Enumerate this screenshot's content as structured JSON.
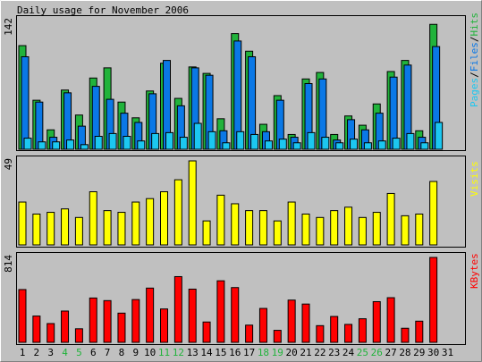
{
  "title": "Daily usage for November 2006",
  "days": [
    "1",
    "2",
    "3",
    "4",
    "5",
    "6",
    "7",
    "8",
    "9",
    "10",
    "11",
    "12",
    "13",
    "14",
    "15",
    "16",
    "17",
    "18",
    "19",
    "20",
    "21",
    "22",
    "23",
    "24",
    "25",
    "26",
    "27",
    "28",
    "29",
    "30",
    "31"
  ],
  "weekend_days": [
    "4",
    "5",
    "11",
    "12",
    "18",
    "19",
    "25",
    "26"
  ],
  "colors": {
    "background": "#c0c0c0",
    "hits": "#21b33b",
    "files": "#0a78e6",
    "pages": "#1cc7f0",
    "visits": "#ffff00",
    "kbytes": "#ff0000",
    "weekend_label": "#21b33b",
    "weekday_label": "#000000"
  },
  "chart_data": [
    {
      "type": "bar",
      "panel": "hits-files-pages",
      "y_max_label": "142",
      "ylim": [
        0,
        142
      ],
      "legend": {
        "pages": "Pages",
        "files": "Files",
        "hits": "Hits",
        "sep": "/"
      },
      "series": [
        {
          "name": "Hits",
          "values": [
            112,
            53,
            21,
            64,
            37,
            77,
            88,
            51,
            34,
            63,
            93,
            55,
            89,
            82,
            33,
            125,
            106,
            27,
            58,
            16,
            76,
            83,
            16,
            36,
            26,
            49,
            84,
            96,
            20,
            135,
            null
          ]
        },
        {
          "name": "Files",
          "values": [
            100,
            51,
            13,
            61,
            25,
            68,
            54,
            39,
            29,
            60,
            96,
            47,
            88,
            80,
            20,
            117,
            100,
            19,
            53,
            13,
            71,
            76,
            10,
            32,
            21,
            39,
            78,
            91,
            13,
            111,
            null
          ]
        },
        {
          "name": "Pages",
          "values": [
            12,
            8,
            8,
            10,
            5,
            14,
            17,
            14,
            9,
            17,
            18,
            13,
            28,
            19,
            7,
            19,
            16,
            9,
            11,
            7,
            18,
            13,
            7,
            11,
            7,
            9,
            12,
            17,
            7,
            29,
            null
          ]
        }
      ]
    },
    {
      "type": "bar",
      "panel": "visits",
      "y_max_label": "49",
      "ylim": [
        0,
        49
      ],
      "legend": {
        "visits": "Visits"
      },
      "series": [
        {
          "name": "Visits",
          "values": [
            25,
            18,
            19,
            21,
            16,
            31,
            20,
            19,
            25,
            27,
            31,
            38,
            49,
            14,
            29,
            24,
            20,
            20,
            14,
            25,
            18,
            16,
            20,
            22,
            16,
            19,
            30,
            17,
            18,
            37,
            null
          ]
        }
      ]
    },
    {
      "type": "bar",
      "panel": "kbytes",
      "y_max_label": "814",
      "ylim": [
        0,
        814
      ],
      "legend": {
        "kbytes": "KBytes"
      },
      "series": [
        {
          "name": "KBytes",
          "values": [
            506,
            252,
            180,
            300,
            130,
            425,
            400,
            280,
            410,
            520,
            320,
            630,
            510,
            195,
            590,
            525,
            165,
            325,
            115,
            405,
            367,
            160,
            248,
            172,
            226,
            390,
            428,
            135,
            203,
            814,
            null
          ]
        }
      ]
    }
  ]
}
